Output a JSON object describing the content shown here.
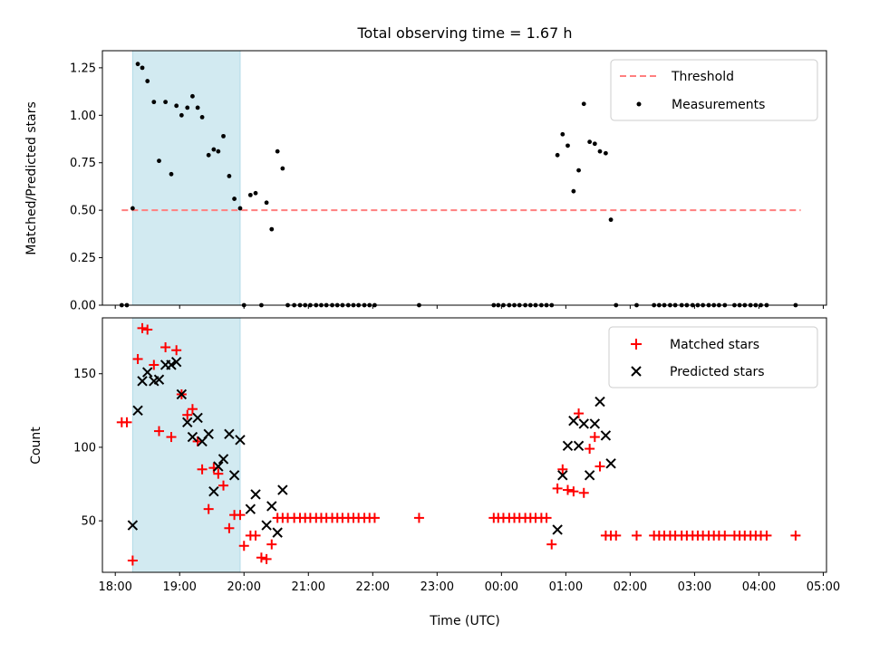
{
  "chart_data": {
    "title": "Total observing time = 1.67 h",
    "xlabel": "Time (UTC)",
    "x_ticks": [
      "18:00",
      "19:00",
      "20:00",
      "21:00",
      "22:00",
      "23:00",
      "00:00",
      "01:00",
      "02:00",
      "03:00",
      "04:00",
      "05:00"
    ],
    "x_range_hours": [
      17.8,
      29.05
    ],
    "shaded_span_hours": [
      18.27,
      19.94
    ],
    "shade_color": "#add8e6",
    "subplots": [
      {
        "type": "scatter",
        "ylabel": "Matched/Predicted stars",
        "ylim": [
          0,
          1.34
        ],
        "y_ticks": [
          "0.00",
          "0.25",
          "0.50",
          "0.75",
          "1.00",
          "1.25"
        ],
        "threshold": {
          "name": "Threshold",
          "value": 0.5,
          "x_range": [
            18.1,
            28.65
          ],
          "color": "#ff7f7f"
        },
        "series": [
          {
            "name": "Measurements",
            "color": "#000000",
            "x": [
              18.1,
              18.18,
              18.27,
              18.35,
              18.42,
              18.5,
              18.6,
              18.68,
              18.78,
              18.87,
              18.95,
              19.03,
              19.12,
              19.2,
              19.28,
              19.35,
              19.45,
              19.53,
              19.6,
              19.68,
              19.77,
              19.85,
              19.94,
              20.0,
              20.1,
              20.18,
              20.27,
              20.35,
              20.43,
              20.52,
              20.6,
              20.68,
              20.78,
              20.87,
              20.95,
              21.03,
              21.12,
              21.2,
              21.28,
              21.37,
              21.45,
              21.53,
              21.62,
              21.7,
              21.78,
              21.87,
              21.95,
              22.03,
              22.72,
              23.88,
              23.95,
              24.03,
              24.12,
              24.2,
              24.28,
              24.37,
              24.45,
              24.53,
              24.62,
              24.7,
              24.78,
              24.87,
              24.95,
              25.03,
              25.12,
              25.2,
              25.28,
              25.37,
              25.45,
              25.53,
              25.62,
              25.7,
              25.78,
              26.1,
              26.37,
              26.45,
              26.53,
              26.62,
              26.7,
              26.8,
              26.88,
              26.97,
              27.05,
              27.13,
              27.22,
              27.3,
              27.38,
              27.47,
              27.62,
              27.7,
              27.78,
              27.87,
              27.95,
              28.03,
              28.12,
              28.57
            ],
            "y": [
              0,
              0,
              0.51,
              1.27,
              1.25,
              1.18,
              1.07,
              0.76,
              1.07,
              0.69,
              1.05,
              1.0,
              1.04,
              1.1,
              1.04,
              0.99,
              0.79,
              0.82,
              0.81,
              0.89,
              0.68,
              0.56,
              0.51,
              0,
              0.58,
              0.59,
              0,
              0.54,
              0.4,
              0.81,
              0.72,
              0,
              0,
              0,
              0,
              0,
              0,
              0,
              0,
              0,
              0,
              0,
              0,
              0,
              0,
              0,
              0,
              0,
              0,
              0,
              0,
              0,
              0,
              0,
              0,
              0,
              0,
              0,
              0,
              0,
              0,
              0.79,
              0.9,
              0.84,
              0.6,
              0.71,
              1.06,
              0.86,
              0.85,
              0.81,
              0.8,
              0.45,
              0,
              0,
              0,
              0,
              0,
              0,
              0,
              0,
              0,
              0,
              0,
              0,
              0,
              0,
              0,
              0,
              0,
              0,
              0,
              0,
              0,
              0,
              0,
              0
            ]
          }
        ],
        "legend": "upper right"
      },
      {
        "type": "scatter",
        "ylabel": "Count",
        "ylim": [
          15,
          188
        ],
        "y_ticks": [
          "50",
          "100",
          "150"
        ],
        "series": [
          {
            "name": "Matched stars",
            "color": "#ff0000",
            "marker": "plus",
            "x": [
              18.1,
              18.18,
              18.27,
              18.35,
              18.42,
              18.5,
              18.6,
              18.68,
              18.78,
              18.87,
              18.95,
              19.03,
              19.12,
              19.2,
              19.28,
              19.35,
              19.45,
              19.53,
              19.6,
              19.68,
              19.77,
              19.85,
              19.94,
              20.0,
              20.1,
              20.18,
              20.27,
              20.35,
              20.43,
              20.52,
              20.6,
              20.68,
              20.78,
              20.87,
              20.95,
              21.03,
              21.12,
              21.2,
              21.28,
              21.37,
              21.45,
              21.53,
              21.62,
              21.7,
              21.78,
              21.87,
              21.95,
              22.03,
              22.72,
              23.88,
              23.95,
              24.03,
              24.12,
              24.2,
              24.28,
              24.37,
              24.45,
              24.53,
              24.62,
              24.7,
              24.78,
              24.87,
              24.95,
              25.03,
              25.12,
              25.2,
              25.28,
              25.37,
              25.45,
              25.53,
              25.62,
              25.7,
              25.78,
              26.1,
              26.37,
              26.45,
              26.53,
              26.62,
              26.7,
              26.8,
              26.88,
              26.97,
              27.05,
              27.13,
              27.22,
              27.3,
              27.38,
              27.47,
              27.62,
              27.7,
              27.78,
              27.87,
              27.95,
              28.03,
              28.12,
              28.57
            ],
            "y": [
              117,
              117,
              23,
              160,
              181,
              180,
              156,
              111,
              168,
              107,
              166,
              136,
              122,
              126,
              104,
              85,
              58,
              86,
              82,
              74,
              45,
              54,
              54,
              33,
              40,
              40,
              25,
              24,
              34,
              52,
              52,
              52,
              52,
              52,
              52,
              52,
              52,
              52,
              52,
              52,
              52,
              52,
              52,
              52,
              52,
              52,
              52,
              52,
              52,
              52,
              52,
              52,
              52,
              52,
              52,
              52,
              52,
              52,
              52,
              52,
              34,
              72,
              85,
              71,
              70,
              123,
              69,
              99,
              107,
              87,
              40,
              40,
              40,
              40,
              40,
              40,
              40,
              40,
              40,
              40,
              40,
              40,
              40,
              40,
              40,
              40,
              40,
              40,
              40,
              40,
              40,
              40,
              40,
              40,
              40,
              40
            ]
          },
          {
            "name": "Predicted stars",
            "color": "#000000",
            "marker": "x",
            "x": [
              18.27,
              18.35,
              18.42,
              18.5,
              18.6,
              18.68,
              18.78,
              18.87,
              18.95,
              19.03,
              19.12,
              19.2,
              19.28,
              19.35,
              19.45,
              19.53,
              19.6,
              19.68,
              19.77,
              19.85,
              19.94,
              20.1,
              20.18,
              20.35,
              20.43,
              20.52,
              20.6,
              24.87,
              24.95,
              25.03,
              25.12,
              25.2,
              25.28,
              25.37,
              25.45,
              25.53,
              25.62,
              25.7
            ],
            "y": [
              47,
              125,
              145,
              151,
              145,
              146,
              156,
              156,
              158,
              136,
              117,
              107,
              120,
              104,
              109,
              70,
              87,
              92,
              109,
              81,
              105,
              58,
              68,
              47,
              60,
              42,
              71,
              44,
              81,
              101,
              118,
              101,
              116,
              81,
              116,
              131,
              108,
              89
            ]
          }
        ],
        "legend": "upper right"
      }
    ]
  }
}
